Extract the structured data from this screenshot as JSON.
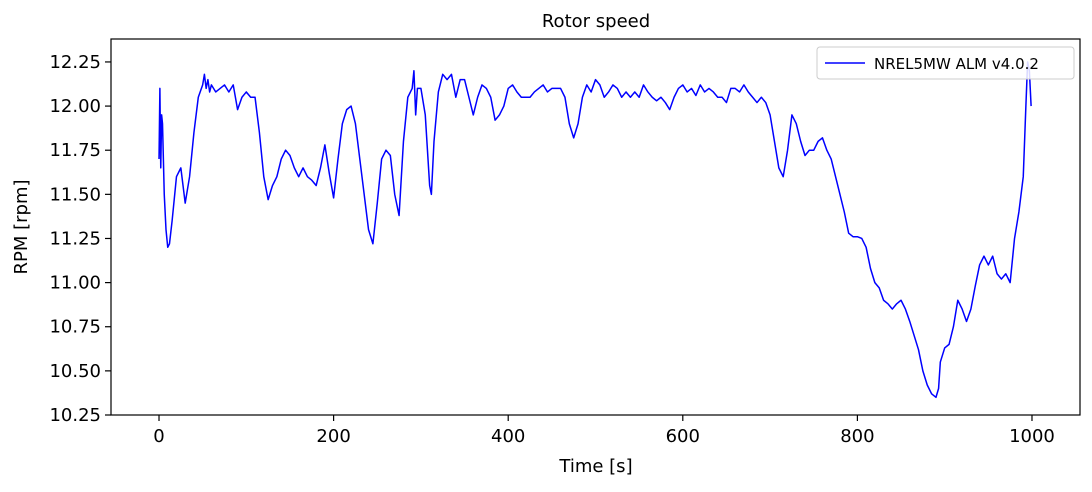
{
  "chart_data": {
    "type": "line",
    "title": "Rotor speed",
    "xlabel": "Time [s]",
    "ylabel": "RPM [rpm]",
    "xlim": [
      -55,
      1055
    ],
    "ylim": [
      10.25,
      12.38
    ],
    "xticks": [
      {
        "value": 0,
        "label": "0"
      },
      {
        "value": 200,
        "label": "200"
      },
      {
        "value": 400,
        "label": "400"
      },
      {
        "value": 600,
        "label": "600"
      },
      {
        "value": 800,
        "label": "800"
      },
      {
        "value": 1000,
        "label": "1000"
      }
    ],
    "yticks": [
      {
        "value": 10.25,
        "label": "10.25"
      },
      {
        "value": 10.5,
        "label": "10.50"
      },
      {
        "value": 10.75,
        "label": "10.75"
      },
      {
        "value": 11.0,
        "label": "11.00"
      },
      {
        "value": 11.25,
        "label": "11.25"
      },
      {
        "value": 11.5,
        "label": "11.50"
      },
      {
        "value": 11.75,
        "label": "11.75"
      },
      {
        "value": 12.0,
        "label": "12.00"
      },
      {
        "value": 12.25,
        "label": "12.25"
      }
    ],
    "grid": false,
    "legend": {
      "position": "upper-right"
    },
    "series": [
      {
        "name": "NREL5MW ALM v4.0.2",
        "color": "#0000ff",
        "x": [
          0,
          1,
          2,
          3,
          4,
          5,
          6,
          8,
          10,
          12,
          15,
          20,
          25,
          30,
          35,
          40,
          45,
          50,
          52,
          54,
          56,
          58,
          60,
          65,
          70,
          75,
          80,
          85,
          90,
          95,
          100,
          105,
          110,
          115,
          120,
          125,
          130,
          135,
          140,
          145,
          150,
          155,
          160,
          165,
          170,
          175,
          180,
          185,
          190,
          195,
          200,
          205,
          210,
          215,
          220,
          225,
          230,
          235,
          240,
          245,
          250,
          255,
          260,
          265,
          270,
          275,
          280,
          285,
          290,
          292,
          294,
          296,
          300,
          305,
          310,
          312,
          315,
          320,
          325,
          330,
          335,
          340,
          345,
          350,
          355,
          360,
          365,
          370,
          375,
          380,
          385,
          390,
          395,
          400,
          405,
          410,
          415,
          420,
          425,
          430,
          435,
          440,
          445,
          450,
          455,
          460,
          465,
          470,
          475,
          480,
          485,
          490,
          495,
          500,
          505,
          510,
          515,
          520,
          525,
          530,
          535,
          540,
          545,
          550,
          555,
          560,
          565,
          570,
          575,
          580,
          585,
          590,
          595,
          600,
          605,
          610,
          615,
          620,
          625,
          630,
          635,
          640,
          645,
          650,
          655,
          660,
          665,
          670,
          675,
          680,
          685,
          690,
          695,
          700,
          705,
          710,
          715,
          720,
          725,
          730,
          735,
          740,
          745,
          750,
          755,
          760,
          765,
          770,
          775,
          780,
          785,
          790,
          795,
          800,
          805,
          810,
          815,
          820,
          825,
          830,
          835,
          840,
          845,
          850,
          855,
          860,
          865,
          870,
          875,
          880,
          885,
          890,
          893,
          895,
          900,
          905,
          910,
          915,
          920,
          925,
          930,
          935,
          940,
          945,
          950,
          955,
          960,
          965,
          970,
          975,
          980,
          985,
          990,
          993,
          995,
          997,
          999
        ],
        "y": [
          11.7,
          12.1,
          11.65,
          11.95,
          11.9,
          11.7,
          11.5,
          11.3,
          11.2,
          11.22,
          11.35,
          11.6,
          11.65,
          11.45,
          11.6,
          11.85,
          12.05,
          12.12,
          12.18,
          12.1,
          12.15,
          12.08,
          12.12,
          12.08,
          12.1,
          12.12,
          12.08,
          12.12,
          11.98,
          12.05,
          12.08,
          12.05,
          12.05,
          11.85,
          11.6,
          11.47,
          11.55,
          11.6,
          11.7,
          11.75,
          11.72,
          11.65,
          11.6,
          11.65,
          11.6,
          11.58,
          11.55,
          11.65,
          11.78,
          11.62,
          11.48,
          11.7,
          11.9,
          11.98,
          12.0,
          11.9,
          11.7,
          11.5,
          11.3,
          11.22,
          11.45,
          11.7,
          11.75,
          11.72,
          11.5,
          11.38,
          11.8,
          12.05,
          12.1,
          12.2,
          11.95,
          12.1,
          12.1,
          11.95,
          11.55,
          11.5,
          11.8,
          12.08,
          12.18,
          12.15,
          12.18,
          12.05,
          12.15,
          12.15,
          12.05,
          11.95,
          12.05,
          12.12,
          12.1,
          12.05,
          11.92,
          11.95,
          12.0,
          12.1,
          12.12,
          12.08,
          12.05,
          12.05,
          12.05,
          12.08,
          12.1,
          12.12,
          12.08,
          12.1,
          12.1,
          12.1,
          12.05,
          11.9,
          11.82,
          11.9,
          12.05,
          12.12,
          12.08,
          12.15,
          12.12,
          12.05,
          12.08,
          12.12,
          12.1,
          12.05,
          12.08,
          12.05,
          12.08,
          12.05,
          12.12,
          12.08,
          12.05,
          12.03,
          12.05,
          12.02,
          11.98,
          12.05,
          12.1,
          12.12,
          12.08,
          12.1,
          12.06,
          12.12,
          12.08,
          12.1,
          12.08,
          12.05,
          12.05,
          12.02,
          12.1,
          12.1,
          12.08,
          12.12,
          12.08,
          12.05,
          12.02,
          12.05,
          12.02,
          11.95,
          11.8,
          11.65,
          11.6,
          11.75,
          11.95,
          11.9,
          11.8,
          11.72,
          11.75,
          11.75,
          11.8,
          11.82,
          11.75,
          11.7,
          11.6,
          11.5,
          11.4,
          11.28,
          11.26,
          11.26,
          11.25,
          11.2,
          11.08,
          11.0,
          10.97,
          10.9,
          10.88,
          10.85,
          10.88,
          10.9,
          10.85,
          10.78,
          10.7,
          10.62,
          10.5,
          10.42,
          10.37,
          10.35,
          10.4,
          10.55,
          10.63,
          10.65,
          10.75,
          10.9,
          10.85,
          10.78,
          10.85,
          10.98,
          11.1,
          11.15,
          11.1,
          11.15,
          11.05,
          11.02,
          11.05,
          11.0,
          11.25,
          11.4,
          11.6,
          12.0,
          12.25,
          12.2,
          12.0
        ]
      }
    ]
  }
}
